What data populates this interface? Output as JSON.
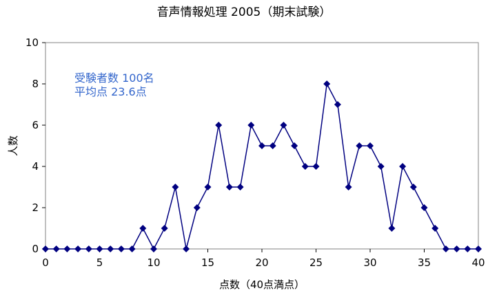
{
  "chart_data": {
    "type": "line",
    "title": "音声情報処理 2005（期末試験）",
    "xlabel": "点数（40点満点）",
    "ylabel": "人数",
    "xlim": [
      0,
      40
    ],
    "ylim": [
      0,
      10
    ],
    "x_ticks": [
      0,
      5,
      10,
      15,
      20,
      25,
      30,
      35,
      40
    ],
    "y_ticks": [
      0,
      2,
      4,
      6,
      8,
      10
    ],
    "grid": false,
    "line_color": "#000080",
    "marker": "diamond",
    "annotations": {
      "examinees": "受験者数  100名",
      "average": "平均点      23.6点",
      "color": "#3366CC"
    },
    "series": [
      {
        "x": [
          0,
          1,
          2,
          3,
          4,
          5,
          6,
          7,
          8,
          9,
          10,
          11,
          12,
          13,
          14,
          15,
          16,
          17,
          18,
          19,
          20,
          21,
          22,
          23,
          24,
          25,
          26,
          27,
          28,
          29,
          30,
          31,
          32,
          33,
          34,
          35,
          36,
          37,
          38,
          39,
          40
        ],
        "values": [
          0,
          0,
          0,
          0,
          0,
          0,
          0,
          0,
          0,
          1,
          0,
          1,
          3,
          0,
          2,
          3,
          6,
          3,
          3,
          6,
          5,
          5,
          6,
          5,
          4,
          4,
          8,
          7,
          3,
          5,
          5,
          4,
          1,
          4,
          3,
          2,
          1,
          0,
          0,
          0,
          0
        ]
      }
    ]
  }
}
